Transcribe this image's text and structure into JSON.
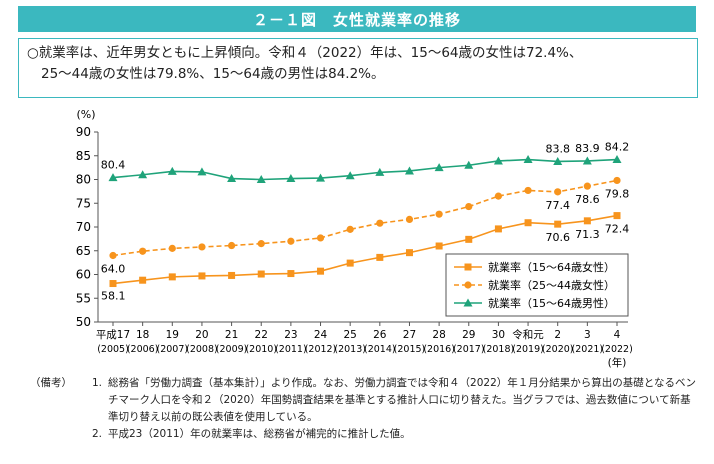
{
  "header": {
    "title": "２－１図　女性就業率の推移"
  },
  "summary": {
    "line1": "○就業率は、近年男女ともに上昇傾向。令和４（2022）年は、15～64歳の女性は72.4%、",
    "line2": "25～44歳の女性は79.8%、15～64歳の男性は84.2%。"
  },
  "notes": {
    "label": "（備考）",
    "items": [
      {
        "num": "1.",
        "text": "総務省「労働力調査（基本集計）」より作成。なお、労働力調査では令和４（2022）年１月分結果から算出の基礎となるベンチマーク人口を令和２（2020）年国勢調査結果を基準とする推計人口に切り替えた。当グラフでは、過去数値について新基準切り替え以前の既公表値を使用している。"
      },
      {
        "num": "2.",
        "text": "平成23（2011）年の就業率は、総務省が補完的に推計した値。"
      }
    ]
  },
  "chart_data": {
    "type": "line",
    "ylabel": "(%)",
    "xunit": "(年)",
    "ylim": [
      50,
      90
    ],
    "yticks": [
      50,
      55,
      60,
      65,
      70,
      75,
      80,
      85,
      90
    ],
    "grid": false,
    "legend_position": "bottom-right",
    "categories": [
      "平成17",
      "18",
      "19",
      "20",
      "21",
      "22",
      "23",
      "24",
      "25",
      "26",
      "27",
      "28",
      "29",
      "30",
      "令和元",
      "2",
      "3",
      "4"
    ],
    "categories_sub": [
      "(2005)",
      "(2006)",
      "(2007)",
      "(2008)",
      "(2009)",
      "(2010)",
      "(2011)",
      "(2012)",
      "(2013)",
      "(2014)",
      "(2015)",
      "(2016)",
      "(2017)",
      "(2018)",
      "(2019)",
      "(2020)",
      "(2021)",
      "(2022)"
    ],
    "series": [
      {
        "name": "就業率（15～64歳女性）",
        "color": "#f7941d",
        "dash": false,
        "marker": "square",
        "values": [
          58.1,
          58.8,
          59.5,
          59.7,
          59.8,
          60.1,
          60.2,
          60.7,
          62.4,
          63.6,
          64.6,
          66.0,
          67.4,
          69.6,
          70.9,
          70.6,
          71.3,
          72.4
        ]
      },
      {
        "name": "就業率（25～44歳女性）",
        "color": "#f7941d",
        "dash": true,
        "marker": "circle",
        "values": [
          64.0,
          64.9,
          65.5,
          65.8,
          66.1,
          66.5,
          67.0,
          67.7,
          69.5,
          70.8,
          71.6,
          72.7,
          74.3,
          76.5,
          77.7,
          77.4,
          78.6,
          79.8
        ]
      },
      {
        "name": "就業率（15～64歳男性）",
        "color": "#1fa37a",
        "dash": false,
        "marker": "triangle",
        "values": [
          80.4,
          81.0,
          81.7,
          81.6,
          80.2,
          80.0,
          80.2,
          80.3,
          80.8,
          81.5,
          81.8,
          82.5,
          83.0,
          83.9,
          84.2,
          83.8,
          83.9,
          84.2
        ]
      }
    ],
    "data_labels": [
      {
        "series": 0,
        "index": 0,
        "text": "58.1",
        "pos": "below-right"
      },
      {
        "series": 0,
        "index": 15,
        "text": "70.6",
        "pos": "below"
      },
      {
        "series": 0,
        "index": 16,
        "text": "71.3",
        "pos": "below"
      },
      {
        "series": 0,
        "index": 17,
        "text": "72.4",
        "pos": "below"
      },
      {
        "series": 1,
        "index": 0,
        "text": "64.0",
        "pos": "below"
      },
      {
        "series": 1,
        "index": 15,
        "text": "77.4",
        "pos": "below"
      },
      {
        "series": 1,
        "index": 16,
        "text": "78.6",
        "pos": "below"
      },
      {
        "series": 1,
        "index": 17,
        "text": "79.8",
        "pos": "below"
      },
      {
        "series": 2,
        "index": 0,
        "text": "80.4",
        "pos": "above"
      },
      {
        "series": 2,
        "index": 15,
        "text": "83.8",
        "pos": "above"
      },
      {
        "series": 2,
        "index": 16,
        "text": "83.9",
        "pos": "above"
      },
      {
        "series": 2,
        "index": 17,
        "text": "84.2",
        "pos": "above"
      }
    ]
  }
}
